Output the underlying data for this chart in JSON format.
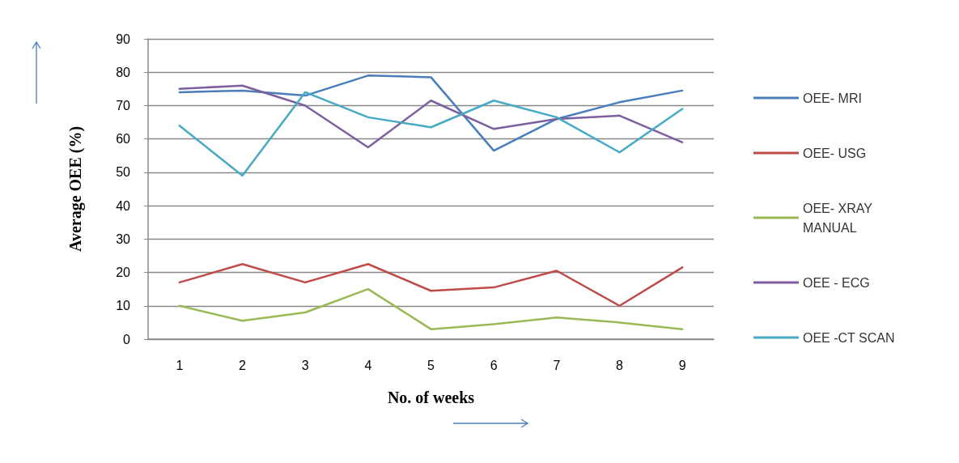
{
  "chart_data": {
    "type": "line",
    "xlabel": "No. of weeks",
    "ylabel": "Average OEE (%)",
    "categories": [
      "1",
      "2",
      "3",
      "4",
      "5",
      "6",
      "7",
      "8",
      "9"
    ],
    "series": [
      {
        "name": "OEE- MRI",
        "color": "#4a7ebb",
        "values": [
          74,
          74.5,
          73,
          79,
          78.5,
          56.5,
          66,
          71,
          74.5
        ]
      },
      {
        "name": "OEE- USG",
        "color": "#be4b48",
        "values": [
          17,
          22.5,
          17,
          22.5,
          14.5,
          15.5,
          20.5,
          10,
          21.5
        ]
      },
      {
        "name": "OEE- XRAY MANUAL",
        "color": "#98b954",
        "values": [
          10,
          5.5,
          8,
          15,
          3,
          4.5,
          6.5,
          5,
          3
        ]
      },
      {
        "name": "OEE - ECG",
        "color": "#7d5fa0",
        "values": [
          75,
          76,
          70,
          57.5,
          71.5,
          63,
          66,
          67,
          59
        ]
      },
      {
        "name": "OEE -CT SCAN",
        "color": "#46aac5",
        "values": [
          64,
          49,
          74,
          66.5,
          63.5,
          71.5,
          66.5,
          56,
          69
        ]
      }
    ],
    "ylim": [
      0,
      90
    ],
    "yticks": [
      0,
      10,
      20,
      30,
      40,
      50,
      60,
      70,
      80,
      90
    ],
    "grid": "y",
    "legend": "right",
    "marker": "none",
    "line_style": "solid"
  }
}
